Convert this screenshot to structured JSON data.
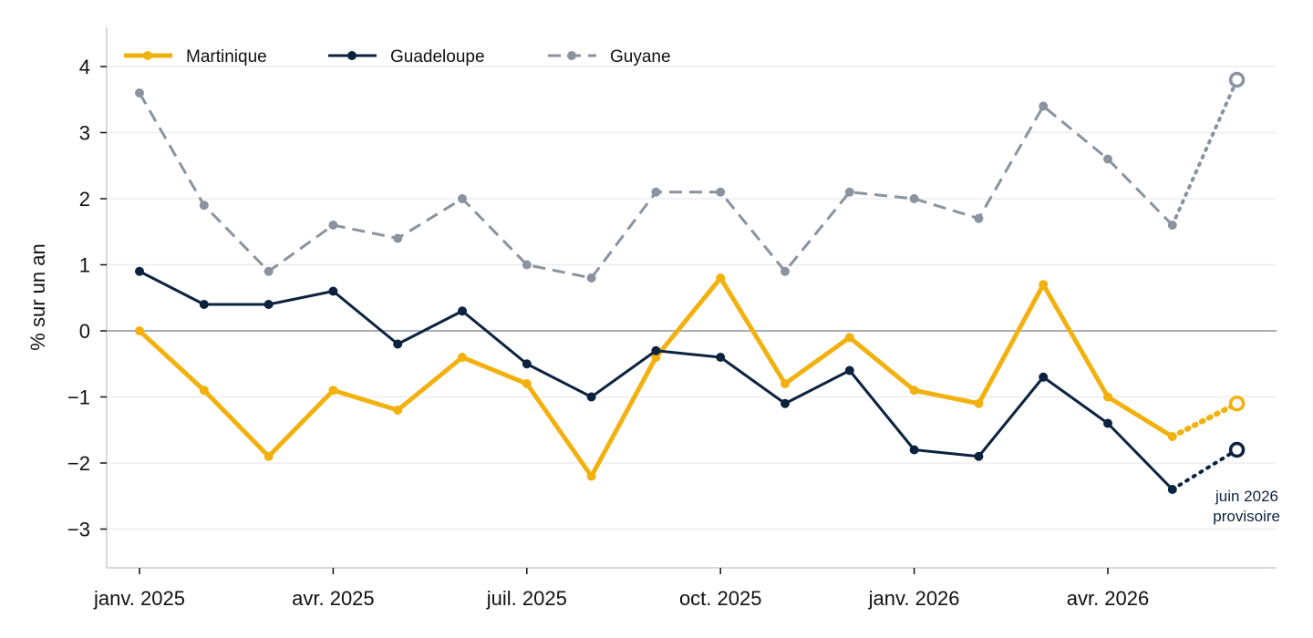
{
  "chart_data": {
    "type": "line",
    "title": "",
    "xlabel": "",
    "ylabel": "% sur un an",
    "ylim": [
      -3.6,
      4.6
    ],
    "yticks": [
      4,
      3,
      2,
      1,
      0,
      -1,
      -2,
      -3
    ],
    "ytick_labels": [
      "4",
      "3",
      "2",
      "1",
      "0",
      "−1",
      "−2",
      "−3"
    ],
    "xticks": [
      {
        "label": "janv. 2025",
        "index": 0
      },
      {
        "label": "avr. 2025",
        "index": 3
      },
      {
        "label": "juil. 2025",
        "index": 6
      },
      {
        "label": "oct. 2025",
        "index": 9
      },
      {
        "label": "janv. 2026",
        "index": 12
      },
      {
        "label": "avr. 2026",
        "index": 15
      }
    ],
    "x": [
      "janv. 2025",
      "févr. 2025",
      "mars 2025",
      "avr. 2025",
      "mai 2025",
      "juin 2025",
      "juil. 2025",
      "août 2025",
      "sept. 2025",
      "oct. 2025",
      "nov. 2025",
      "déc. 2025",
      "janv. 2026",
      "févr. 2026",
      "mars 2026",
      "avr. 2026",
      "mai 2026",
      "juin 2026"
    ],
    "grid": true,
    "legend_position": "top-left",
    "series": [
      {
        "name": "Martinique",
        "color": "#f2b10e",
        "style": "solid",
        "width": 5,
        "values": [
          0.0,
          -0.9,
          -1.9,
          -0.9,
          -1.2,
          -0.4,
          -0.8,
          -2.2,
          -0.4,
          0.8,
          -0.8,
          -0.1,
          -0.9,
          -1.1,
          0.7,
          -1.0,
          -1.6,
          -1.1
        ]
      },
      {
        "name": "Guadeloupe",
        "color": "#0c2340",
        "style": "solid",
        "width": 3,
        "values": [
          0.9,
          0.4,
          0.4,
          0.6,
          -0.2,
          0.3,
          -0.5,
          -1.0,
          -0.3,
          -0.4,
          -1.1,
          -0.6,
          -1.8,
          -1.9,
          -0.7,
          -1.4,
          -2.4,
          -1.8
        ]
      },
      {
        "name": "Guyane",
        "color": "#8a939f",
        "style": "dashed",
        "width": 3,
        "values": [
          3.6,
          1.9,
          0.9,
          1.6,
          1.4,
          2.0,
          1.0,
          0.8,
          2.1,
          2.1,
          0.9,
          2.1,
          2.0,
          1.7,
          3.4,
          2.6,
          1.6,
          3.8
        ]
      }
    ],
    "provisional_index": 17,
    "annotation": [
      "juin 2026",
      "provisoire"
    ]
  }
}
